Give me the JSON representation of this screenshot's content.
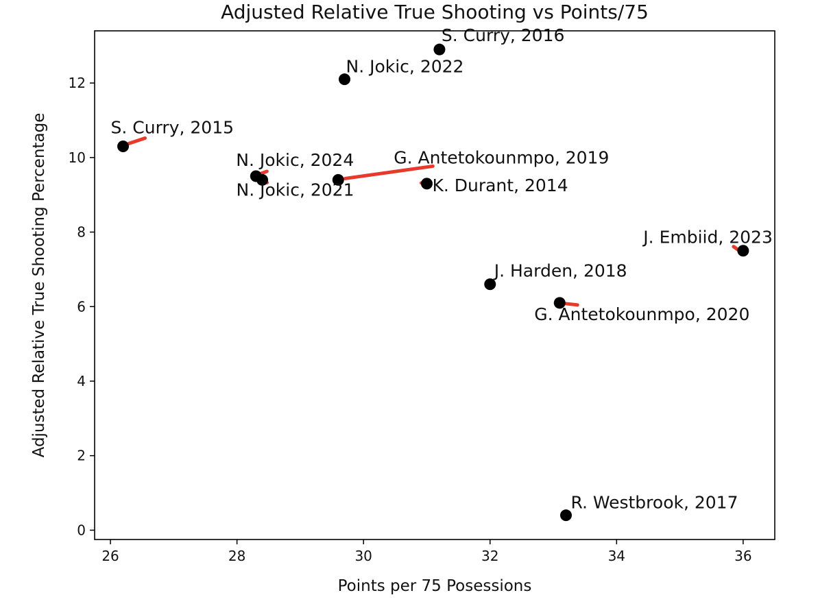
{
  "chart_data": {
    "type": "scatter",
    "title": "Adjusted Relative True Shooting vs Points/75",
    "xlabel": "Points per 75 Posessions",
    "ylabel": "Adjusted Relative True Shooting Percentage",
    "xlim": [
      25.75,
      36.5
    ],
    "ylim": [
      -0.25,
      13.4
    ],
    "xticks": [
      26,
      28,
      30,
      32,
      34,
      36
    ],
    "yticks": [
      0,
      2,
      4,
      6,
      8,
      10,
      12
    ],
    "xtick_labels": [
      "26",
      "28",
      "30",
      "32",
      "34",
      "36"
    ],
    "ytick_labels": [
      "0",
      "2",
      "4",
      "6",
      "8",
      "10",
      "12"
    ],
    "grid": false,
    "marker_color": "#000000",
    "connector_color": "#e8392b",
    "points": [
      {
        "label": "S. Curry, 2016",
        "x": 31.2,
        "y": 12.9
      },
      {
        "label": "N. Jokic, 2022",
        "x": 29.7,
        "y": 12.1
      },
      {
        "label": "S. Curry, 2015",
        "x": 26.2,
        "y": 10.3
      },
      {
        "label": "N. Jokic, 2024",
        "x": 28.3,
        "y": 9.5
      },
      {
        "label": "N. Jokic, 2021",
        "x": 28.4,
        "y": 9.4
      },
      {
        "label": "G. Antetokounmpo, 2019",
        "x": 29.6,
        "y": 9.4
      },
      {
        "label": "K. Durant, 2014",
        "x": 31.0,
        "y": 9.3
      },
      {
        "label": "J. Embiid, 2023",
        "x": 36.0,
        "y": 7.5
      },
      {
        "label": "J. Harden, 2018",
        "x": 32.0,
        "y": 6.6
      },
      {
        "label": "G. Antetokounmpo, 2020",
        "x": 33.1,
        "y": 6.1
      },
      {
        "label": "R. Westbrook, 2017",
        "x": 33.2,
        "y": 0.4
      }
    ]
  }
}
